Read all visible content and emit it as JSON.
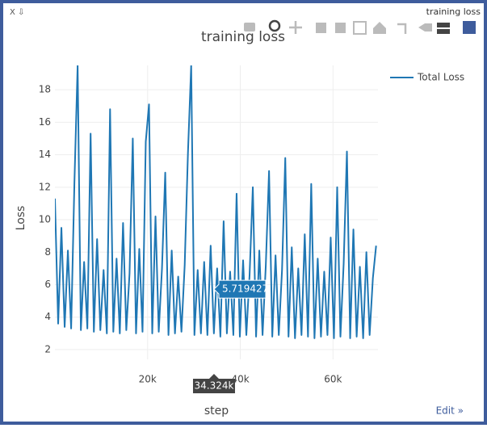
{
  "window": {
    "title": "training loss",
    "controls": "X ⇩",
    "edit_link": "Edit »"
  },
  "chart_data": {
    "type": "line",
    "title": "training loss",
    "x_label": "step",
    "y_label": "Loss",
    "x": [
      0,
      700,
      1400,
      2100,
      2800,
      3500,
      4200,
      4900,
      5600,
      6300,
      7000,
      7700,
      8400,
      9100,
      9800,
      10500,
      11200,
      11900,
      12600,
      13300,
      14000,
      14700,
      15400,
      16100,
      16800,
      17500,
      18200,
      18900,
      19600,
      20300,
      21000,
      21700,
      22400,
      23100,
      23800,
      24500,
      25200,
      25900,
      26600,
      27300,
      28000,
      28700,
      29400,
      30100,
      30800,
      31500,
      32200,
      32900,
      33600,
      34300,
      35000,
      35700,
      36400,
      37100,
      37800,
      38500,
      39200,
      39900,
      40600,
      41300,
      42000,
      42700,
      43400,
      44100,
      44800,
      45500,
      46200,
      46900,
      47600,
      48300,
      49000,
      49700,
      50400,
      51100,
      51800,
      52500,
      53200,
      53900,
      54600,
      55300,
      56000,
      56700,
      57400,
      58100,
      58800,
      59500,
      60200,
      60900,
      61600,
      62300,
      63000,
      63700,
      64400,
      65100,
      65800,
      66500,
      67200,
      67900,
      68600,
      69300
    ],
    "series": [
      {
        "name": "Total Loss",
        "color": "#1f77b4",
        "values": [
          11.3,
          3.6,
          9.5,
          3.4,
          8.1,
          3.3,
          12.2,
          19.5,
          3.2,
          7.4,
          3.3,
          15.3,
          3.1,
          8.8,
          3.2,
          6.9,
          3.0,
          16.8,
          3.1,
          7.6,
          3.0,
          9.8,
          3.2,
          6.7,
          15.0,
          3.0,
          8.2,
          3.1,
          14.8,
          17.1,
          3.0,
          10.2,
          3.1,
          7.0,
          12.9,
          2.9,
          8.1,
          3.0,
          6.5,
          3.1,
          7.2,
          14.1,
          19.5,
          2.9,
          6.9,
          3.0,
          7.4,
          2.9,
          8.4,
          3.0,
          7.0,
          2.8,
          9.9,
          3.0,
          6.8,
          2.9,
          11.6,
          2.8,
          7.5,
          2.9,
          6.6,
          12.0,
          2.8,
          8.1,
          2.9,
          7.2,
          13.0,
          2.8,
          7.8,
          2.9,
          6.9,
          13.8,
          2.8,
          8.3,
          2.7,
          7.0,
          2.9,
          9.1,
          2.8,
          12.2,
          2.7,
          7.6,
          2.8,
          6.8,
          2.9,
          8.9,
          2.7,
          12.0,
          2.8,
          7.3,
          14.2,
          2.7,
          9.4,
          2.8,
          7.1,
          2.7,
          8.0,
          2.9,
          6.4,
          8.4
        ]
      }
    ],
    "xlim": [
      0,
      69700
    ],
    "ylim": [
      1.4,
      19.5
    ],
    "xticks": [
      {
        "value": 20000,
        "label": "20k"
      },
      {
        "value": 40000,
        "label": "40k"
      },
      {
        "value": 60000,
        "label": "60k"
      }
    ],
    "yticks": [
      2,
      4,
      6,
      8,
      10,
      12,
      14,
      16,
      18
    ],
    "grid": true,
    "legend": "right",
    "hover": {
      "x": {
        "value": 34324,
        "label": "34.324k"
      },
      "y": 5.719427
    }
  }
}
